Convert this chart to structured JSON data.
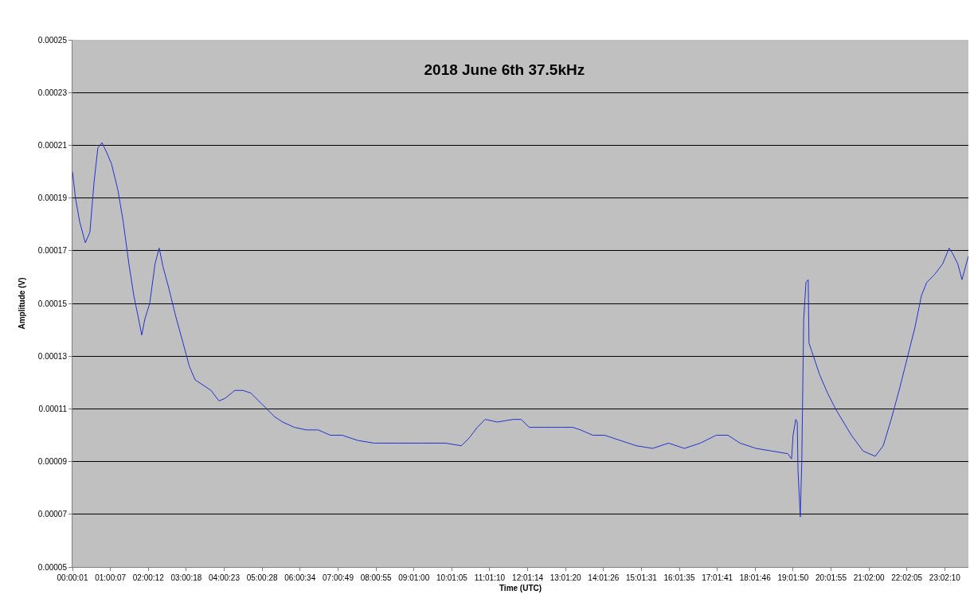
{
  "chart_data": {
    "type": "line",
    "title": "2018 June 6th 37.5kHz",
    "xlabel": "Time (UTC)",
    "ylabel": "Amplitude (V)",
    "x": [
      0,
      0.08,
      0.19,
      0.34,
      0.46,
      0.57,
      0.67,
      0.78,
      0.88,
      1.03,
      1.2,
      1.34,
      1.49,
      1.62,
      1.72,
      1.83,
      1.91,
      2.04,
      2.18,
      2.29,
      2.39,
      2.54,
      2.71,
      2.92,
      3.09,
      3.24,
      3.45,
      3.66,
      3.87,
      4.03,
      4.29,
      4.5,
      4.71,
      4.92,
      5.13,
      5.34,
      5.55,
      5.86,
      6.18,
      6.49,
      6.81,
      7.12,
      7.54,
      7.96,
      8.59,
      9.22,
      9.85,
      10.27,
      10.48,
      10.69,
      10.9,
      11.22,
      11.64,
      11.85,
      12.06,
      12.48,
      12.9,
      13.21,
      13.42,
      13.74,
      14.05,
      14.47,
      14.89,
      15.32,
      15.74,
      16.16,
      16.58,
      17.0,
      17.31,
      17.63,
      18.05,
      18.47,
      18.89,
      18.99,
      19.03,
      19.1,
      19.14,
      19.16,
      19.22,
      19.26,
      19.31,
      19.37,
      19.43,
      19.45,
      19.52,
      19.73,
      19.94,
      20.15,
      20.36,
      20.57,
      20.88,
      21.2,
      21.41,
      21.62,
      21.83,
      22.04,
      22.25,
      22.42,
      22.56,
      22.77,
      22.98,
      23.15,
      23.24,
      23.38,
      23.49,
      23.66
    ],
    "series": [
      {
        "color": "#2233cc",
        "values": [
          0.0002,
          0.00019,
          0.000181,
          0.000173,
          0.000177,
          0.000196,
          0.000209,
          0.000211,
          0.000208,
          0.000203,
          0.000193,
          0.000181,
          0.000165,
          0.000153,
          0.000146,
          0.000138,
          0.000144,
          0.00015,
          0.000165,
          0.000171,
          0.000164,
          0.000156,
          0.000146,
          0.000135,
          0.000126,
          0.000121,
          0.000119,
          0.000117,
          0.000113,
          0.000114,
          0.000117,
          0.000117,
          0.000116,
          0.000113,
          0.00011,
          0.000107,
          0.000105,
          0.000103,
          0.000102,
          0.000102,
          0.0001,
          0.0001,
          9.8e-05,
          9.7e-05,
          9.7e-05,
          9.7e-05,
          9.7e-05,
          9.6e-05,
          9.9e-05,
          0.000103,
          0.000106,
          0.000105,
          0.000106,
          0.000106,
          0.000103,
          0.000103,
          0.000103,
          0.000103,
          0.000102,
          0.0001,
          0.0001,
          9.8e-05,
          9.6e-05,
          9.5e-05,
          9.7e-05,
          9.5e-05,
          9.7e-05,
          0.0001,
          0.0001,
          9.7e-05,
          9.5e-05,
          9.4e-05,
          9.3e-05,
          9.1e-05,
          0.0001,
          0.000106,
          0.000105,
          8.7e-05,
          6.9e-05,
          9e-05,
          0.000144,
          0.000158,
          0.000159,
          0.000135,
          0.000132,
          0.000123,
          0.000116,
          0.00011,
          0.000105,
          0.0001,
          9.4e-05,
          9.2e-05,
          9.6e-05,
          0.000106,
          0.000117,
          0.000129,
          0.000141,
          0.000153,
          0.000158,
          0.000161,
          0.000165,
          0.000171,
          0.000169,
          0.000165,
          0.000159,
          0.000168
        ]
      }
    ],
    "xlim": [
      0,
      23.66
    ],
    "xticks": [
      {
        "value": 0.0003,
        "label": "00:00:01"
      },
      {
        "value": 1.0019,
        "label": "01:00:07"
      },
      {
        "value": 2.0033,
        "label": "02:00:12"
      },
      {
        "value": 3.005,
        "label": "03:00:18"
      },
      {
        "value": 4.0064,
        "label": "04:00:23"
      },
      {
        "value": 5.0078,
        "label": "05:00:28"
      },
      {
        "value": 6.0094,
        "label": "06:00:34"
      },
      {
        "value": 7.0136,
        "label": "07:00:49"
      },
      {
        "value": 8.0153,
        "label": "08:00:55"
      },
      {
        "value": 9.0167,
        "label": "09:01:00"
      },
      {
        "value": 10.0181,
        "label": "10:01:05"
      },
      {
        "value": 11.0194,
        "label": "11:01:10"
      },
      {
        "value": 12.0206,
        "label": "12:01:14"
      },
      {
        "value": 13.0222,
        "label": "13:01:20"
      },
      {
        "value": 14.0239,
        "label": "14:01:26"
      },
      {
        "value": 15.0253,
        "label": "15:01:31"
      },
      {
        "value": 16.0264,
        "label": "16:01:35"
      },
      {
        "value": 17.0281,
        "label": "17:01:41"
      },
      {
        "value": 18.0294,
        "label": "18:01:46"
      },
      {
        "value": 19.0306,
        "label": "19:01:50"
      },
      {
        "value": 20.0319,
        "label": "20:01:55"
      },
      {
        "value": 21.0333,
        "label": "21:02:00"
      },
      {
        "value": 22.0347,
        "label": "22:02:05"
      },
      {
        "value": 23.0361,
        "label": "23:02:10"
      }
    ],
    "ylim": [
      5e-05,
      0.00025
    ],
    "yticks": [
      {
        "value": 5e-05,
        "label": "0.00005"
      },
      {
        "value": 7e-05,
        "label": "0.00007"
      },
      {
        "value": 9e-05,
        "label": "0.00009"
      },
      {
        "value": 0.00011,
        "label": "0.00011"
      },
      {
        "value": 0.00013,
        "label": "0.00013"
      },
      {
        "value": 0.00015,
        "label": "0.00015"
      },
      {
        "value": 0.00017,
        "label": "0.00017"
      },
      {
        "value": 0.00019,
        "label": "0.00019"
      },
      {
        "value": 0.00021,
        "label": "0.00021"
      },
      {
        "value": 0.00023,
        "label": "0.00023"
      },
      {
        "value": 0.00025,
        "label": "0.00025"
      }
    ],
    "grid": "y",
    "marker": "none",
    "line_style": "solid"
  }
}
